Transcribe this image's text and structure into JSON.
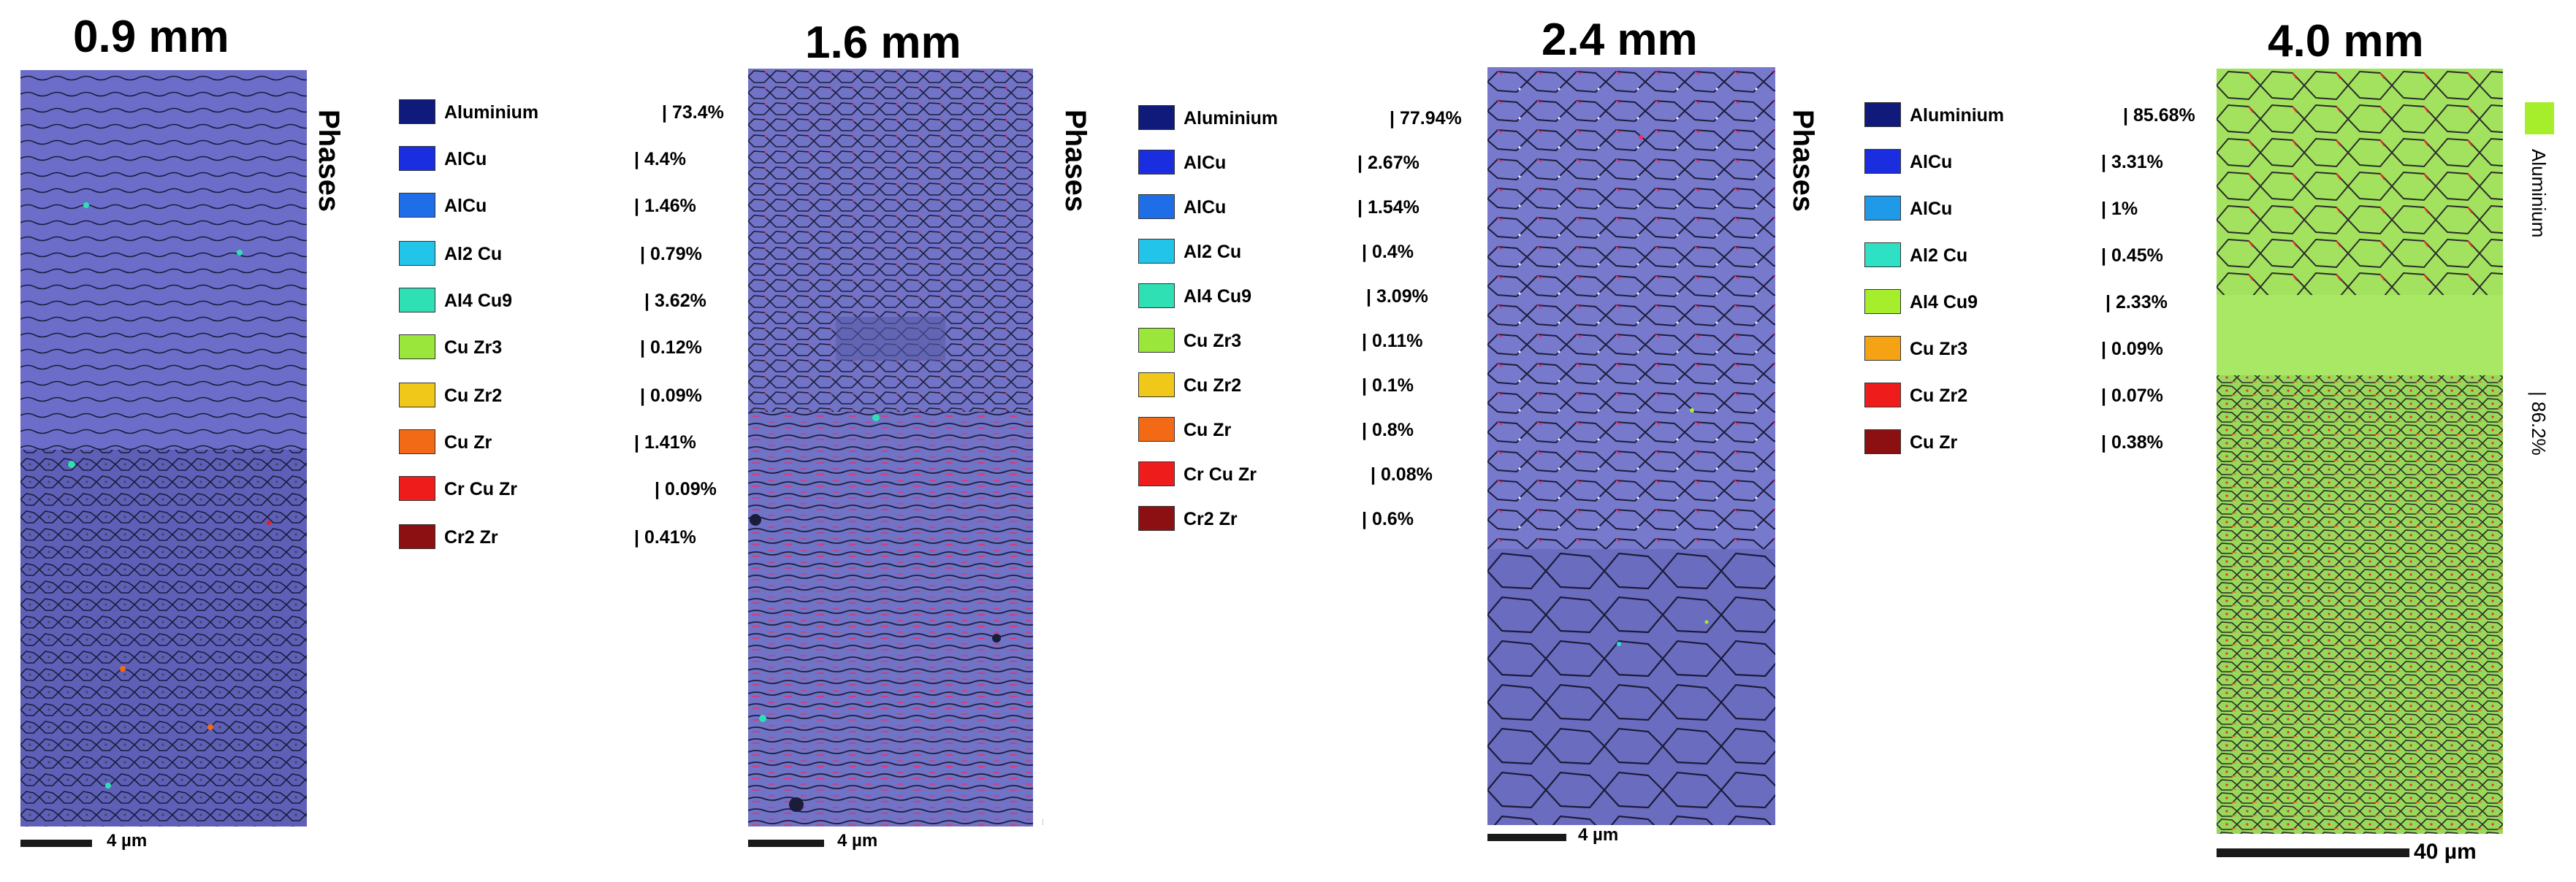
{
  "panels": [
    {
      "title": "0.9 mm",
      "side_label": "Phases",
      "scale": "4 µm",
      "legend": [
        {
          "name": "Aluminium",
          "value": "| 73.4%",
          "color": "#0f1a7a"
        },
        {
          "name": "AlCu",
          "value": "| 4.4%",
          "color": "#1a2ee0"
        },
        {
          "name": "AlCu",
          "value": "| 1.46%",
          "color": "#1f6ee8"
        },
        {
          "name": "Al2 Cu",
          "value": "| 0.79%",
          "color": "#22c4ea"
        },
        {
          "name": "Al4 Cu9",
          "value": "| 3.62%",
          "color": "#2ee0b4"
        },
        {
          "name": "Cu Zr3",
          "value": "| 0.12%",
          "color": "#9ae63a"
        },
        {
          "name": "Cu Zr2",
          "value": "| 0.09%",
          "color": "#f0c81a"
        },
        {
          "name": "Cu Zr",
          "value": "| 1.41%",
          "color": "#f26a16"
        },
        {
          "name": "Cr Cu Zr",
          "value": "| 0.09%",
          "color": "#ef1c1c"
        },
        {
          "name": "Cr2 Zr",
          "value": "| 0.41%",
          "color": "#8c0f12"
        }
      ]
    },
    {
      "title": "1.6 mm",
      "side_label": "Phases",
      "scale": "4 µm",
      "legend": [
        {
          "name": "Aluminium",
          "value": "| 77.94%",
          "color": "#0f1a7a"
        },
        {
          "name": "AlCu",
          "value": "| 2.67%",
          "color": "#1a2ee0"
        },
        {
          "name": "AlCu",
          "value": "| 1.54%",
          "color": "#1f6ee8"
        },
        {
          "name": "Al2 Cu",
          "value": "| 0.4%",
          "color": "#22c4ea"
        },
        {
          "name": "Al4 Cu9",
          "value": "| 3.09%",
          "color": "#2ee0b4"
        },
        {
          "name": "Cu Zr3",
          "value": "| 0.11%",
          "color": "#9ae63a"
        },
        {
          "name": "Cu Zr2",
          "value": "| 0.1%",
          "color": "#f0c81a"
        },
        {
          "name": "Cu Zr",
          "value": "| 0.8%",
          "color": "#f26a16"
        },
        {
          "name": "Cr Cu Zr",
          "value": "| 0.08%",
          "color": "#ef1c1c"
        },
        {
          "name": "Cr2 Zr",
          "value": "| 0.6%",
          "color": "#8c0f12"
        }
      ]
    },
    {
      "title": "2.4 mm",
      "side_label": "Phases",
      "scale": "4 µm",
      "legend": [
        {
          "name": "Aluminium",
          "value": "| 85.68%",
          "color": "#0f1a7a"
        },
        {
          "name": "AlCu",
          "value": "| 3.31%",
          "color": "#1a2ee0"
        },
        {
          "name": "AlCu",
          "value": "| 1%",
          "color": "#1f9ae8"
        },
        {
          "name": "Al2 Cu",
          "value": "| 0.45%",
          "color": "#2ee0c4"
        },
        {
          "name": "Al4 Cu9",
          "value": "| 2.33%",
          "color": "#a6ee2c"
        },
        {
          "name": "Cu Zr3",
          "value": "| 0.09%",
          "color": "#f5a214"
        },
        {
          "name": "Cu Zr2",
          "value": "| 0.07%",
          "color": "#ef1c1c"
        },
        {
          "name": "Cu Zr",
          "value": "| 0.38%",
          "color": "#8c0f12"
        }
      ]
    },
    {
      "title": "4.0 mm",
      "scale": "40 µm",
      "side_key_name": "Aluminium",
      "side_key_value": "| 86.2%",
      "side_key_color": "#a6ee2c"
    }
  ],
  "micrograph_note": "..."
}
